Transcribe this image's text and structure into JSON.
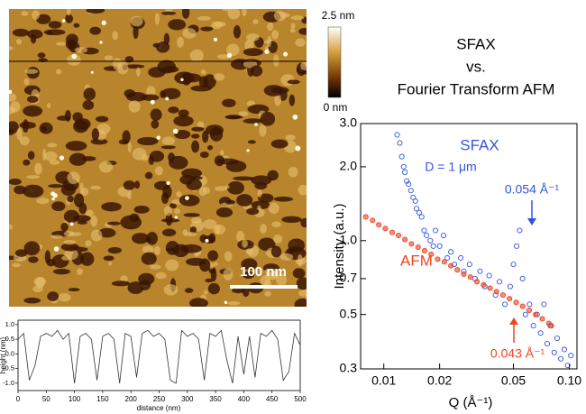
{
  "image": {
    "colorbar_max": "2.5 nm",
    "colorbar_min": "0 nm",
    "scale_bar": "100 nm"
  },
  "chart_data": [
    {
      "type": "scatter",
      "title_lines": [
        "SFAX",
        "vs.",
        "Fourier Transform AFM"
      ],
      "x_label": "Q  (Å⁻¹)",
      "y_label": "Intensity  (a.u.)",
      "log_x": true,
      "log_y": true,
      "xlim": [
        0.0075,
        0.11
      ],
      "ylim": [
        0.3,
        3.0
      ],
      "xticks": [
        0.01,
        0.02,
        0.05,
        {
          "value": 0.1,
          "label": "0.10"
        }
      ],
      "yticks": [
        {
          "value": 0.3,
          "label": "0.3"
        },
        0.5,
        0.7,
        {
          "value": 1,
          "label": "1.0"
        },
        {
          "value": 2,
          "label": "2.0"
        },
        {
          "value": 3,
          "label": "3.0"
        }
      ],
      "annotations": [
        "D = 1 μm",
        "0.054 Å⁻¹",
        "0.043 Å⁻¹"
      ],
      "series": [
        {
          "name": "SFAX",
          "color": "#3355dd",
          "marker": "open",
          "x": [
            0.0118,
            0.0122,
            0.0125,
            0.0128,
            0.013,
            0.0133,
            0.0136,
            0.014,
            0.0144,
            0.0148,
            0.015,
            0.0155,
            0.016,
            0.0165,
            0.017,
            0.0178,
            0.0185,
            0.019,
            0.02,
            0.021,
            0.022,
            0.023,
            0.024,
            0.026,
            0.027,
            0.029,
            0.031,
            0.033,
            0.035,
            0.037,
            0.04,
            0.042,
            0.045,
            0.048,
            0.05,
            0.052,
            0.054,
            0.056,
            0.058,
            0.061,
            0.064,
            0.067,
            0.07,
            0.073,
            0.076,
            0.079,
            0.083,
            0.086,
            0.09,
            0.094,
            0.098,
            0.102
          ],
          "values": [
            2.7,
            2.5,
            2.2,
            2.0,
            1.9,
            1.75,
            1.7,
            1.6,
            1.5,
            1.45,
            1.35,
            1.3,
            1.25,
            1.1,
            1.05,
            1.0,
            0.95,
            1.1,
            0.95,
            1.05,
            0.85,
            0.9,
            0.8,
            0.85,
            0.75,
            0.8,
            0.7,
            0.75,
            0.65,
            0.72,
            0.6,
            0.68,
            0.55,
            0.65,
            0.8,
            0.95,
            1.1,
            0.7,
            0.5,
            0.55,
            0.45,
            0.5,
            0.42,
            0.55,
            0.38,
            0.45,
            0.35,
            0.4,
            0.33,
            0.36,
            0.31,
            0.34
          ]
        },
        {
          "name": "AFM",
          "color": "#ee4422",
          "marker": "filled",
          "x": [
            0.008,
            0.0087,
            0.0094,
            0.0102,
            0.0111,
            0.012,
            0.013,
            0.0141,
            0.0153,
            0.0166,
            0.018,
            0.0195,
            0.0212,
            0.023,
            0.0249,
            0.027,
            0.0293,
            0.0318,
            0.0345,
            0.0374,
            0.0405,
            0.0439,
            0.0476,
            0.0517,
            0.056,
            0.0608,
            0.0659,
            0.0715,
            0.0776,
            0.08
          ],
          "values": [
            1.25,
            1.21,
            1.16,
            1.12,
            1.08,
            1.05,
            1.01,
            0.97,
            0.94,
            0.91,
            0.88,
            0.84,
            0.82,
            0.79,
            0.76,
            0.73,
            0.71,
            0.68,
            0.66,
            0.64,
            0.62,
            0.6,
            0.58,
            0.56,
            0.54,
            0.52,
            0.5,
            0.48,
            0.46,
            0.45
          ]
        }
      ]
    },
    {
      "type": "line",
      "x_label": "distance  (nm)",
      "y_label": "height  (nm)",
      "color": "#333333",
      "xlim": [
        0,
        500
      ],
      "ylim": [
        -1.25,
        1.15
      ],
      "xticks": [
        0,
        50,
        100,
        150,
        200,
        250,
        300,
        350,
        400,
        450,
        500
      ],
      "yticks": [
        {
          "value": 1,
          "label": "1.0"
        },
        0.5,
        {
          "value": 0,
          "label": "0.0"
        },
        -0.5,
        {
          "value": -1,
          "label": "-1.0"
        }
      ],
      "x": [
        0,
        10,
        20,
        30,
        40,
        50,
        60,
        70,
        80,
        90,
        100,
        110,
        120,
        130,
        140,
        150,
        160,
        170,
        180,
        190,
        200,
        210,
        220,
        230,
        240,
        250,
        260,
        270,
        280,
        290,
        300,
        310,
        320,
        330,
        340,
        350,
        360,
        370,
        380,
        390,
        400,
        410,
        420,
        430,
        440,
        450,
        460,
        470,
        480,
        490,
        500
      ],
      "values": [
        0.5,
        0.7,
        -0.9,
        -0.4,
        0.6,
        0.7,
        0.6,
        0.8,
        0.5,
        0.7,
        -1.0,
        0.6,
        0.7,
        0.5,
        -0.9,
        0.6,
        0.7,
        0.5,
        -1.0,
        0.7,
        0.6,
        -0.8,
        0.7,
        0.8,
        0.6,
        0.7,
        0.5,
        -0.9,
        -1.0,
        0.8,
        0.6,
        0.7,
        0.5,
        -0.9,
        0.7,
        0.6,
        0.8,
        -0.2,
        -1.0,
        0.6,
        -0.7,
        0.6,
        -0.8,
        0.7,
        0.6,
        0.8,
        0.5,
        -0.9,
        -0.6,
        0.7,
        0.3
      ]
    }
  ]
}
